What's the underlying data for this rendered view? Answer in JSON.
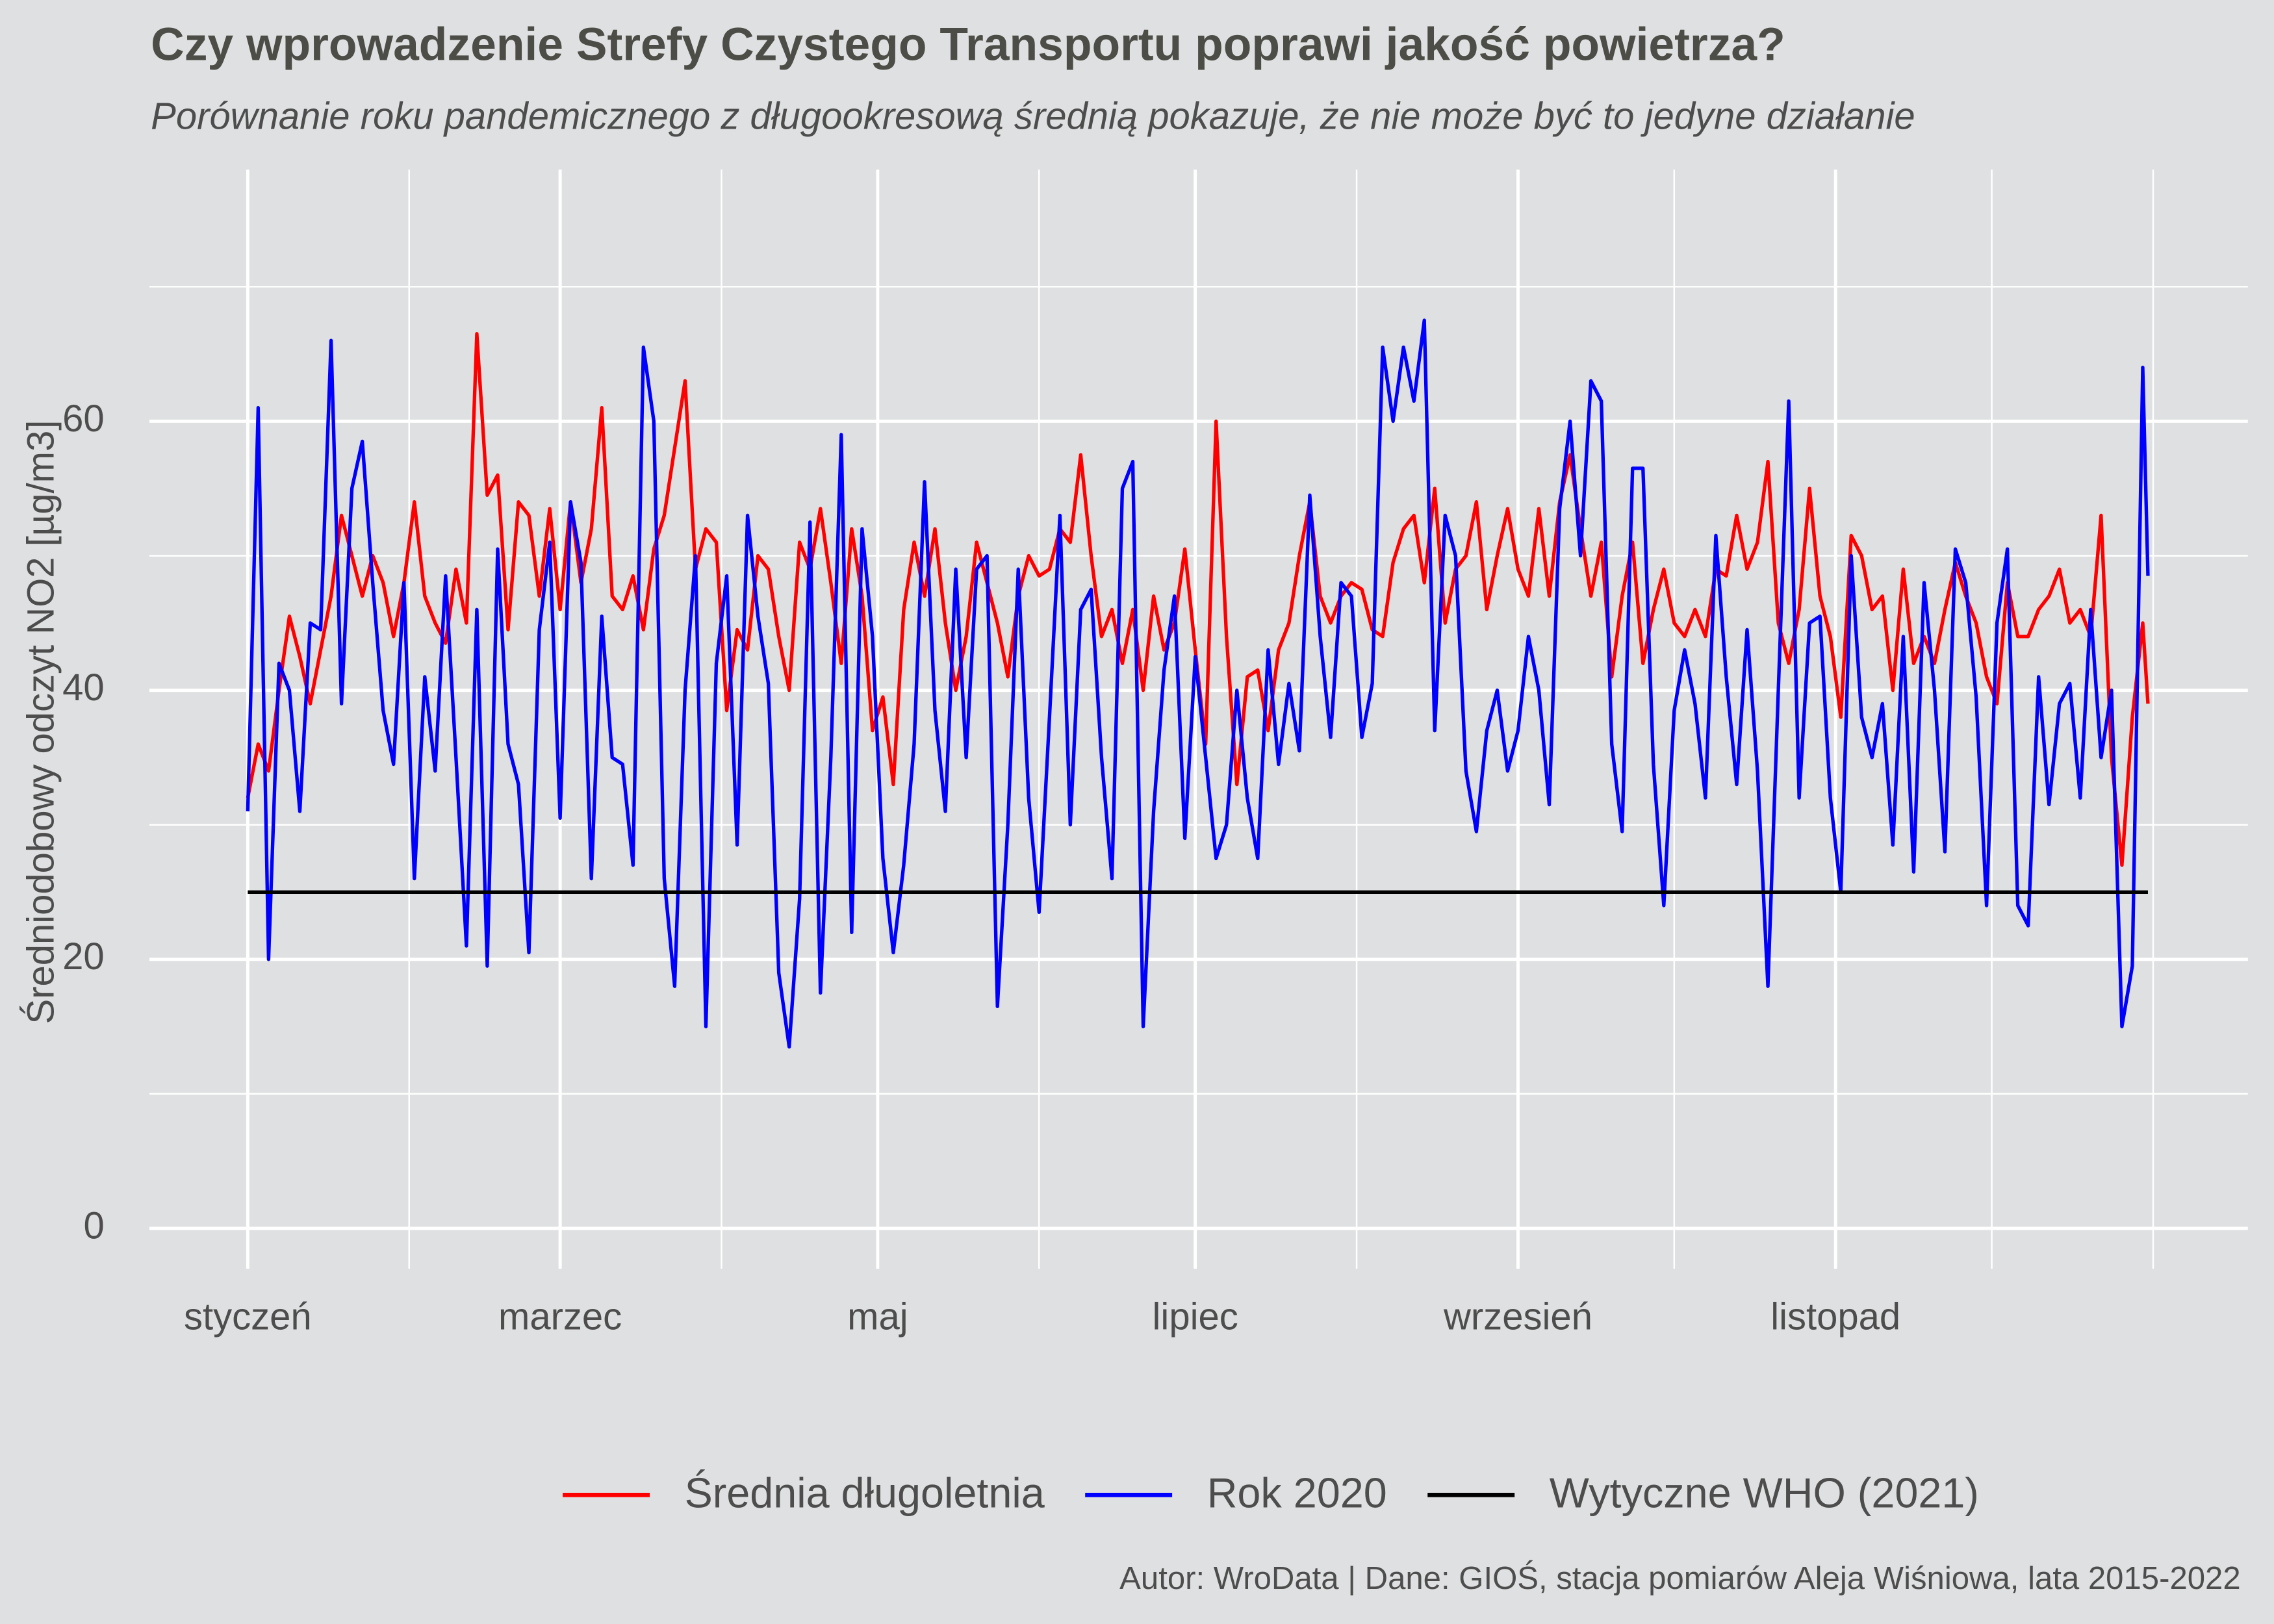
{
  "chart_data": {
    "type": "line",
    "title": "Czy wprowadzenie Strefy Czystego Transportu poprawi jakość powietrza?",
    "subtitle": "Porównanie roku pandemicznego z długookresową średnią pokazuje, że nie może być to jedyne działanie",
    "y_label": "Średniodobowy odczyt NO2 [µg/m3]",
    "caption": "Autor: WroData | Dane: GIOŚ, stacja pomiarów Aleja Wiśniowa, lata 2015-2022",
    "x": [
      1,
      3,
      5,
      7,
      9,
      11,
      13,
      15,
      17,
      19,
      21,
      23,
      25,
      27,
      29,
      31,
      33,
      35,
      37,
      39,
      41,
      43,
      45,
      47,
      49,
      51,
      53,
      55,
      57,
      59,
      61,
      63,
      65,
      67,
      69,
      71,
      73,
      75,
      77,
      79,
      81,
      83,
      85,
      87,
      89,
      91,
      93,
      95,
      97,
      99,
      101,
      103,
      105,
      107,
      109,
      111,
      113,
      115,
      117,
      119,
      121,
      123,
      125,
      127,
      129,
      131,
      133,
      135,
      137,
      139,
      141,
      143,
      145,
      147,
      149,
      151,
      153,
      155,
      157,
      159,
      161,
      163,
      165,
      167,
      169,
      171,
      173,
      175,
      177,
      179,
      181,
      183,
      185,
      187,
      189,
      191,
      193,
      195,
      197,
      199,
      201,
      203,
      205,
      207,
      209,
      211,
      213,
      215,
      217,
      219,
      221,
      223,
      225,
      227,
      229,
      231,
      233,
      235,
      237,
      239,
      241,
      243,
      245,
      247,
      249,
      251,
      253,
      255,
      257,
      259,
      261,
      263,
      265,
      267,
      269,
      271,
      273,
      275,
      277,
      279,
      281,
      283,
      285,
      287,
      289,
      291,
      293,
      295,
      297,
      299,
      301,
      303,
      305,
      307,
      309,
      311,
      313,
      315,
      317,
      319,
      321,
      323,
      325,
      327,
      329,
      331,
      333,
      335,
      337,
      339,
      341,
      343,
      345,
      347,
      349,
      351,
      353,
      355,
      357,
      359,
      361,
      363,
      365,
      366
    ],
    "xlim": [
      -17.9,
      385.2
    ],
    "xticks": [
      {
        "value": 1,
        "label": "styczeń"
      },
      {
        "value": 61,
        "label": "marzec"
      },
      {
        "value": 122,
        "label": "maj"
      },
      {
        "value": 183,
        "label": "lipiec"
      },
      {
        "value": 245,
        "label": "wrzesień"
      },
      {
        "value": 306,
        "label": "listopad"
      }
    ],
    "xticks_minor": [
      32,
      92,
      153,
      214,
      275,
      336,
      367
    ],
    "ylim": [
      -3,
      78.7
    ],
    "yticks": [
      0,
      20,
      40,
      60
    ],
    "yticks_minor": [
      10,
      30,
      50,
      70
    ],
    "grid": true,
    "legend": "bottom",
    "series": [
      {
        "name": "Średnia długoletnia",
        "color": "#ff0000",
        "values": [
          32,
          36,
          34,
          40,
          45.5,
          42.5,
          39,
          43,
          47,
          53,
          50,
          47,
          50,
          48,
          44,
          48,
          54,
          47,
          45,
          43.5,
          49,
          45,
          66.5,
          54.5,
          56,
          44.5,
          54,
          53,
          47,
          53.5,
          46,
          54,
          48,
          52,
          61,
          47,
          46,
          48.5,
          44.5,
          50.5,
          53,
          58,
          63,
          49,
          52,
          51,
          38.5,
          44.5,
          43,
          50,
          49,
          44,
          40,
          51,
          49,
          53.5,
          48,
          42,
          52,
          47,
          37,
          39.5,
          33,
          46,
          51,
          47,
          52,
          45,
          40,
          44,
          51,
          48,
          45,
          41,
          47,
          50,
          48.5,
          49,
          52,
          51,
          57.5,
          50,
          44,
          46,
          42,
          46,
          40,
          47,
          43,
          45,
          50.5,
          43,
          36,
          60,
          44,
          33,
          41,
          41.5,
          37,
          43,
          45,
          50,
          54,
          47,
          45,
          47,
          48,
          47.5,
          44.5,
          44,
          49.5,
          52,
          53,
          48,
          55,
          45,
          49,
          50,
          54,
          46,
          50,
          53.5,
          49,
          47,
          53.5,
          47,
          54,
          57.5,
          52,
          47,
          51,
          41,
          47,
          51,
          42,
          46,
          49,
          45,
          44,
          46,
          44,
          49,
          48.5,
          53,
          49,
          51,
          57,
          45,
          42,
          46,
          55,
          47,
          44,
          38,
          51.5,
          50,
          46,
          47,
          40,
          49,
          42,
          44,
          42,
          46,
          49.5,
          47,
          45,
          41,
          39,
          48,
          44,
          44,
          46,
          47,
          49,
          45,
          46,
          44,
          53,
          35,
          27,
          38,
          45,
          39
        ]
      },
      {
        "name": "Rok 2020",
        "color": "#0000ff",
        "values": [
          31,
          61,
          20,
          42,
          40,
          31,
          45,
          44.5,
          66,
          39,
          55,
          58.5,
          48,
          38.5,
          34.5,
          48,
          26,
          41,
          34,
          48.5,
          35,
          21,
          46,
          19.5,
          50.5,
          36,
          33,
          20.5,
          44.5,
          51,
          30.5,
          54,
          49.5,
          26,
          45.5,
          35,
          34.5,
          27,
          65.5,
          60,
          26,
          18,
          40,
          50,
          15,
          42,
          48.5,
          28.5,
          53,
          45.5,
          40.5,
          19,
          13.5,
          24.5,
          52.5,
          17.5,
          35,
          59,
          22,
          52,
          44,
          27.5,
          20.5,
          27,
          36,
          55.5,
          38.5,
          31,
          49,
          35,
          49,
          50,
          16.5,
          30,
          49,
          32,
          23.5,
          38,
          53,
          30,
          46,
          47.5,
          35,
          26,
          55,
          57,
          15,
          31,
          41.5,
          47,
          29,
          42.5,
          35,
          27.5,
          30,
          40,
          32,
          27.5,
          43,
          34.5,
          40.5,
          35.5,
          54.5,
          44,
          36.5,
          48,
          47,
          36.5,
          40.5,
          65.5,
          60,
          65.5,
          61.5,
          67.5,
          37,
          53,
          50,
          34,
          29.5,
          37,
          40,
          34,
          37,
          44,
          40,
          31.5,
          53.5,
          60,
          50,
          63,
          61.5,
          36,
          29.5,
          56.5,
          56.5,
          34.5,
          24,
          38.5,
          43,
          39,
          32,
          51.5,
          41,
          33,
          44.5,
          34,
          18,
          40,
          61.5,
          32,
          45,
          45.5,
          32,
          25,
          50,
          38,
          35,
          39,
          28.5,
          44,
          26.5,
          48,
          40,
          28,
          50.5,
          48,
          39.5,
          24,
          45,
          50.5,
          24,
          22.5,
          41,
          31.5,
          39,
          40.5,
          32,
          46,
          35,
          40,
          15,
          19.5,
          64,
          48.5
        ]
      }
    ],
    "reference_line": {
      "name": "Wytyczne WHO (2021)",
      "color": "#000000",
      "value": 25,
      "x_range": [
        1,
        366
      ]
    }
  }
}
